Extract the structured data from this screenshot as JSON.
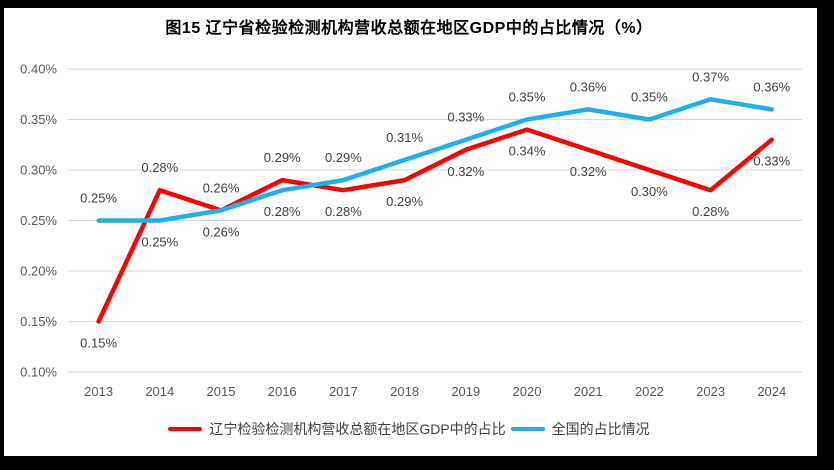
{
  "colors": {
    "frame": "#000000",
    "background": "#FFFFFF",
    "title_text": "#000000",
    "axis_text": "#595959",
    "data_label_text": "#404040",
    "gridline": "#D9D9D9",
    "series_red": "#FF0000",
    "series_blue": "#1FB0EC"
  },
  "chart_data": {
    "type": "line",
    "title": "图15 辽宁省检验检测机构营收总额在地区GDP中的占比情况（%）",
    "categories": [
      "2013",
      "2014",
      "2015",
      "2016",
      "2017",
      "2018",
      "2019",
      "2020",
      "2021",
      "2022",
      "2023",
      "2024"
    ],
    "series": [
      {
        "id": "liaoning",
        "name": "辽宁检验检测机构营收总额在地区GDP中的占比",
        "color": "#FF0000",
        "values": [
          0.15,
          0.28,
          0.26,
          0.29,
          0.28,
          0.29,
          0.32,
          0.34,
          0.32,
          0.3,
          0.28,
          0.33
        ],
        "labels": [
          "0.15%",
          "0.28%",
          "0.26%",
          "0.29%",
          "0.28%",
          "0.29%",
          "0.32%",
          "0.34%",
          "0.32%",
          "0.30%",
          "0.28%",
          "0.33%"
        ],
        "label_positions": [
          "below",
          "above",
          "above",
          "above",
          "below",
          "below",
          "below",
          "below",
          "below",
          "below",
          "below",
          "below"
        ]
      },
      {
        "id": "national",
        "name": "全国的占比情况",
        "color": "#1FB0EC",
        "values": [
          0.25,
          0.25,
          0.26,
          0.28,
          0.29,
          0.31,
          0.33,
          0.35,
          0.36,
          0.35,
          0.37,
          0.36
        ],
        "labels": [
          "0.25%",
          "0.25%",
          "0.26%",
          "0.28%",
          "0.29%",
          "0.31%",
          "0.33%",
          "0.35%",
          "0.36%",
          "0.35%",
          "0.37%",
          "0.36%"
        ],
        "label_positions": [
          "above",
          "below",
          "below",
          "below",
          "above",
          "above",
          "above",
          "above",
          "above",
          "above",
          "above",
          "above"
        ]
      }
    ],
    "ylim": [
      0.1,
      0.4
    ],
    "ytick_values": [
      0.4,
      0.35,
      0.3,
      0.25,
      0.2,
      0.15,
      0.1
    ],
    "ytick_labels": [
      "0.40%",
      "0.35%",
      "0.30%",
      "0.25%",
      "0.20%",
      "0.15%",
      "0.10%"
    ],
    "xlabel": "",
    "ylabel": "",
    "grid": "horizontal",
    "legend_position": "bottom"
  }
}
